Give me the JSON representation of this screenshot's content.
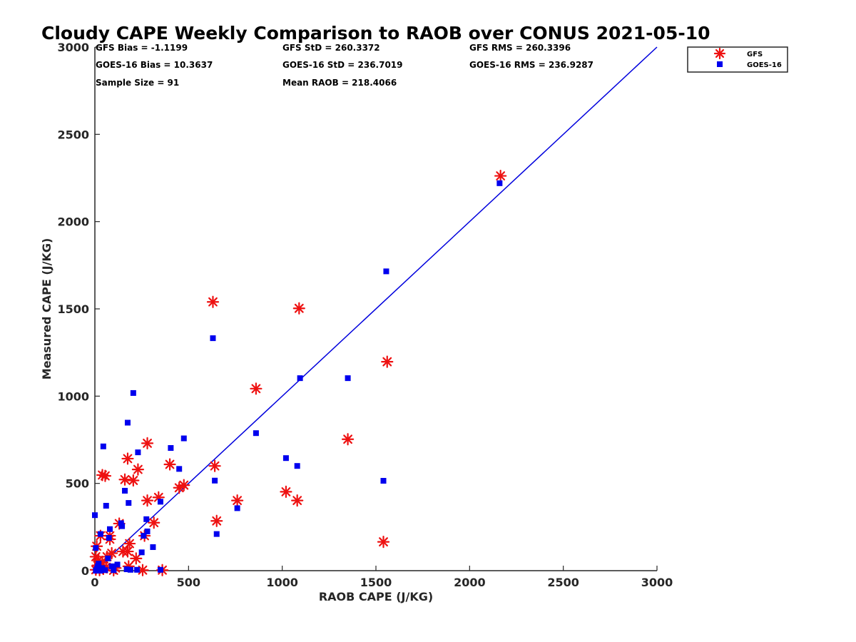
{
  "chart_data": {
    "type": "scatter",
    "title": "Cloudy CAPE Weekly Comparison to RAOB over CONUS 2021-05-10",
    "xlabel": "RAOB CAPE (J/KG)",
    "ylabel": "Measured CAPE (J/KG)",
    "xlim": [
      0,
      3000
    ],
    "ylim": [
      0,
      3000
    ],
    "xticks": [
      "0",
      "500",
      "1000",
      "1500",
      "2000",
      "2500",
      "3000"
    ],
    "yticks": [
      "0",
      "500",
      "1000",
      "1500",
      "2000",
      "2500",
      "3000"
    ],
    "grid": false,
    "legend_position": "top-right",
    "stats": [
      "GFS Bias = -1.1199",
      "GFS StD = 260.3372",
      "GFS RMS = 260.3396",
      "GOES-16 Bias = 10.3637",
      "GOES-16 StD = 236.7019",
      "GOES-16 RMS = 236.9287",
      "Sample Size = 91",
      "Mean RAOB = 218.4066"
    ],
    "reference_line": {
      "x": [
        0,
        3000
      ],
      "y": [
        0,
        3000
      ],
      "color": "#0000dd"
    },
    "series": [
      {
        "name": "GFS",
        "marker": "asterisk",
        "color": "#ee1111",
        "points": [
          [
            2165,
            2262
          ],
          [
            630,
            1540
          ],
          [
            1090,
            1503
          ],
          [
            1560,
            1197
          ],
          [
            860,
            1043
          ],
          [
            1350,
            753
          ],
          [
            280,
            730
          ],
          [
            175,
            642
          ],
          [
            640,
            600
          ],
          [
            400,
            609
          ],
          [
            230,
            580
          ],
          [
            40,
            548
          ],
          [
            55,
            543
          ],
          [
            160,
            522
          ],
          [
            205,
            517
          ],
          [
            475,
            490
          ],
          [
            450,
            475
          ],
          [
            340,
            420
          ],
          [
            280,
            402
          ],
          [
            760,
            402
          ],
          [
            1080,
            402
          ],
          [
            1020,
            452
          ],
          [
            650,
            285
          ],
          [
            130,
            270
          ],
          [
            315,
            275
          ],
          [
            265,
            200
          ],
          [
            80,
            200
          ],
          [
            80,
            180
          ],
          [
            30,
            200
          ],
          [
            185,
            155
          ],
          [
            150,
            110
          ],
          [
            175,
            110
          ],
          [
            10,
            140
          ],
          [
            90,
            100
          ],
          [
            5,
            80
          ],
          [
            65,
            80
          ],
          [
            220,
            70
          ],
          [
            20,
            60
          ],
          [
            1540,
            165
          ],
          [
            180,
            25
          ],
          [
            110,
            15
          ],
          [
            45,
            10
          ],
          [
            5,
            5
          ],
          [
            25,
            3
          ],
          [
            60,
            20
          ],
          [
            100,
            2
          ],
          [
            255,
            3
          ],
          [
            360,
            3
          ],
          [
            15,
            30
          ],
          [
            40,
            45
          ]
        ]
      },
      {
        "name": "GOES-16",
        "marker": "square",
        "color": "#0000ee",
        "points": [
          [
            2160,
            2220
          ],
          [
            1555,
            1715
          ],
          [
            630,
            1332
          ],
          [
            1095,
            1103
          ],
          [
            1350,
            1103
          ],
          [
            205,
            1018
          ],
          [
            175,
            848
          ],
          [
            860,
            788
          ],
          [
            475,
            758
          ],
          [
            45,
            712
          ],
          [
            405,
            703
          ],
          [
            230,
            678
          ],
          [
            1020,
            645
          ],
          [
            1080,
            600
          ],
          [
            450,
            583
          ],
          [
            640,
            516
          ],
          [
            1540,
            515
          ],
          [
            160,
            458
          ],
          [
            180,
            388
          ],
          [
            350,
            395
          ],
          [
            60,
            372
          ],
          [
            760,
            358
          ],
          [
            0,
            318
          ],
          [
            275,
            295
          ],
          [
            140,
            272
          ],
          [
            145,
            255
          ],
          [
            80,
            238
          ],
          [
            280,
            225
          ],
          [
            30,
            210
          ],
          [
            650,
            210
          ],
          [
            260,
            200
          ],
          [
            75,
            188
          ],
          [
            310,
            135
          ],
          [
            5,
            130
          ],
          [
            250,
            105
          ],
          [
            70,
            70
          ],
          [
            20,
            40
          ],
          [
            120,
            35
          ],
          [
            90,
            25
          ],
          [
            40,
            15
          ],
          [
            170,
            8
          ],
          [
            190,
            5
          ],
          [
            225,
            5
          ],
          [
            350,
            5
          ],
          [
            10,
            10
          ],
          [
            55,
            3
          ],
          [
            100,
            3
          ],
          [
            15,
            25
          ],
          [
            30,
            0
          ],
          [
            5,
            0
          ]
        ]
      }
    ]
  }
}
